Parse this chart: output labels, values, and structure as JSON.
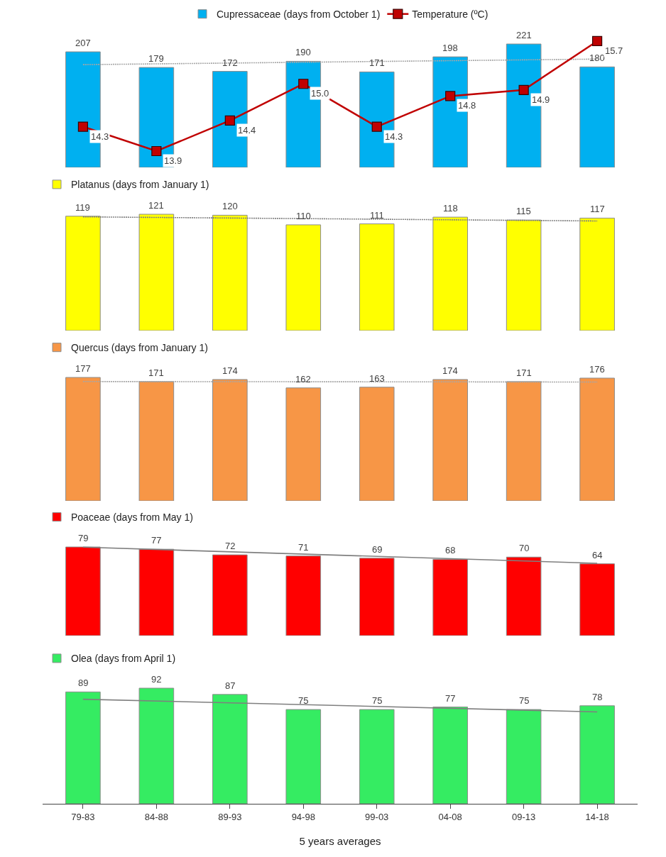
{
  "chart_data": [
    {
      "type": "bar",
      "categories": [
        "79-83",
        "84-88",
        "89-93",
        "94-98",
        "99-03",
        "04-08",
        "09-13",
        "14-18"
      ],
      "tick_labels": false,
      "legend": "top",
      "series": [
        {
          "name": "Cupressaceae (days from October 1)",
          "color": "#00b0f0",
          "values": [
            207,
            179,
            172,
            190,
            171,
            198,
            221,
            180
          ],
          "value_labels": [
            "207",
            "179",
            "172",
            "190",
            "171",
            "198",
            "221",
            "180"
          ]
        },
        {
          "type": "line",
          "x": [
            "79-83",
            "14-18"
          ],
          "color": "#a6a6a6",
          "line_style": "dotted",
          "marker": "none",
          "values": [
            184,
            194
          ]
        },
        {
          "type": "line",
          "name": "Temperature (ºC)",
          "axis": "y2",
          "color": "#c00000",
          "marker": "square",
          "line_style": "solid",
          "values": [
            14.3,
            13.9,
            14.4,
            15.0,
            14.3,
            14.8,
            14.9,
            15.7
          ],
          "value_labels": [
            "14.3",
            "13.9",
            "14.4",
            "15.0",
            "14.3",
            "14.8",
            "14.9",
            "15.7"
          ]
        }
      ]
    },
    {
      "type": "bar",
      "categories": [
        "79-83",
        "84-88",
        "89-93",
        "94-98",
        "99-03",
        "04-08",
        "09-13",
        "14-18"
      ],
      "tick_labels": false,
      "legend": "top left",
      "series": [
        {
          "name": "Platanus (days from January 1)",
          "color": "#ffff00",
          "values": [
            119,
            121,
            120,
            110,
            111,
            118,
            115,
            117
          ],
          "value_labels": [
            "119",
            "121",
            "120",
            "110",
            "111",
            "118",
            "115",
            "117"
          ]
        },
        {
          "type": "line",
          "x": [
            "79-83",
            "14-18"
          ],
          "color": "#7f7f7f",
          "line_style": "dotted",
          "marker": "none",
          "values": [
            118.3,
            114
          ]
        }
      ]
    },
    {
      "type": "bar",
      "categories": [
        "79-83",
        "84-88",
        "89-93",
        "94-98",
        "99-03",
        "04-08",
        "09-13",
        "14-18"
      ],
      "tick_labels": false,
      "legend": "top left",
      "series": [
        {
          "name": "Quercus (days from January 1)",
          "color": "#f79646",
          "values": [
            177,
            171,
            174,
            162,
            163,
            174,
            171,
            176
          ],
          "value_labels": [
            "177",
            "171",
            "174",
            "162",
            "163",
            "174",
            "171",
            "176"
          ]
        },
        {
          "type": "line",
          "x": [
            "79-83",
            "14-18"
          ],
          "color": "#a6a6a6",
          "line_style": "dotted",
          "marker": "none",
          "values": [
            171.1,
            170.4
          ]
        }
      ]
    },
    {
      "type": "bar",
      "categories": [
        "79-83",
        "84-88",
        "89-93",
        "94-98",
        "99-03",
        "04-08",
        "09-13",
        "14-18"
      ],
      "tick_labels": false,
      "legend": "top left",
      "series": [
        {
          "name": "Poaceae (days from May 1)",
          "color": "#ff0000",
          "values": [
            79,
            77,
            72,
            71,
            69,
            68,
            70,
            64
          ],
          "value_labels": [
            "79",
            "77",
            "72",
            "71",
            "69",
            "68",
            "70",
            "64"
          ]
        },
        {
          "type": "line",
          "x": [
            "79-83",
            "14-18"
          ],
          "color": "#7f7f7f",
          "line_style": "solid",
          "marker": "none",
          "values": [
            78.8,
            64.5
          ]
        }
      ]
    },
    {
      "type": "bar",
      "categories": [
        "79-83",
        "84-88",
        "89-93",
        "94-98",
        "99-03",
        "04-08",
        "09-13",
        "14-18"
      ],
      "tick_labels": "x",
      "legend": "top left",
      "xlabel": "5 years averages",
      "series": [
        {
          "name": "Olea (days from April 1)",
          "color": "#35ec62",
          "values": [
            89,
            92,
            87,
            75,
            75,
            77,
            75,
            78
          ],
          "value_labels": [
            "89",
            "92",
            "87",
            "75",
            "75",
            "77",
            "75",
            "78"
          ]
        },
        {
          "type": "line",
          "x": [
            "79-83",
            "14-18"
          ],
          "color": "#7f7f7f",
          "line_style": "solid",
          "marker": "none",
          "values": [
            83.2,
            73.1
          ]
        }
      ]
    }
  ]
}
